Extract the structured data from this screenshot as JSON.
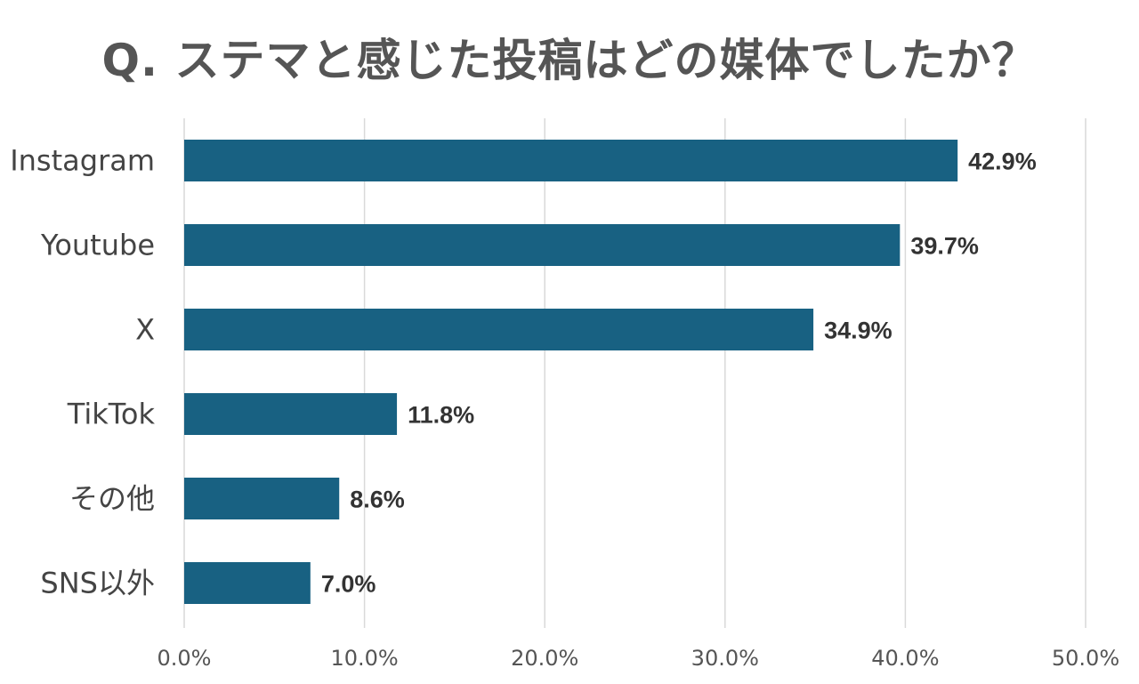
{
  "chart_data": {
    "type": "bar",
    "orientation": "horizontal",
    "title": "Q. ステマと感じた投稿はどの媒体でしたか？",
    "categories": [
      "Instagram",
      "Youtube",
      "X",
      "TikTok",
      "その他",
      "SNS以外"
    ],
    "values": [
      42.9,
      39.7,
      34.9,
      11.8,
      8.6,
      7.0
    ],
    "value_labels": [
      "42.9%",
      "39.7%",
      "34.9%",
      "11.8%",
      "8.6%",
      "7.0%"
    ],
    "xlim": [
      0,
      50
    ],
    "xticks": [
      0,
      10,
      20,
      30,
      40,
      50
    ],
    "xtick_labels": [
      "0.0%",
      "10.0%",
      "20.0%",
      "30.0%",
      "40.0%",
      "50.0%"
    ],
    "xlabel": "",
    "ylabel": "",
    "grid": true,
    "legend": "none",
    "colors": {
      "bar": "#186182",
      "grid": "#d9d9d9",
      "title": "#555555"
    }
  }
}
